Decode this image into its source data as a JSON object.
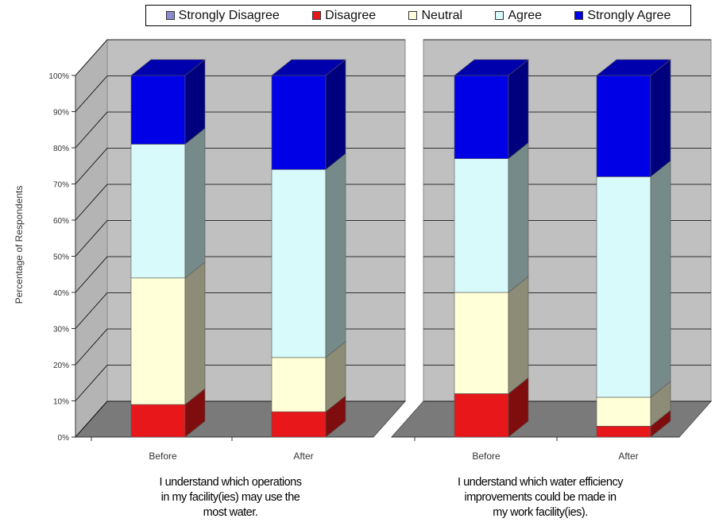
{
  "chart_data": {
    "type": "bar",
    "stacked": true,
    "three_d": true,
    "legend_position": "top",
    "ylabel": "Percentage of Respondents",
    "ylim": [
      0,
      100
    ],
    "yticks": [
      "0%",
      "10%",
      "20%",
      "30%",
      "40%",
      "50%",
      "60%",
      "70%",
      "80%",
      "90%",
      "100%"
    ],
    "series": [
      {
        "name": "Strongly Disagree",
        "color": "#8A8AD0"
      },
      {
        "name": "Disagree",
        "color": "#E8181A"
      },
      {
        "name": "Neutral",
        "color": "#FFFFD8"
      },
      {
        "name": "Agree",
        "color": "#D8FAFA"
      },
      {
        "name": "Strongly Agree",
        "color": "#0000E6"
      }
    ],
    "panels": [
      {
        "caption": [
          "I understand which operations",
          "in my facility(ies) may use the",
          "most water."
        ],
        "categories": [
          "Before",
          "After"
        ],
        "values": [
          [
            0,
            9,
            35,
            37,
            19
          ],
          [
            0,
            7,
            15,
            52,
            26
          ]
        ]
      },
      {
        "caption": [
          "I understand which water efficiency",
          "improvements could be made in",
          "my work facility(ies)."
        ],
        "categories": [
          "Before",
          "After"
        ],
        "values": [
          [
            0,
            12,
            28,
            37,
            23
          ],
          [
            0,
            3,
            8,
            61,
            28
          ]
        ]
      }
    ]
  }
}
